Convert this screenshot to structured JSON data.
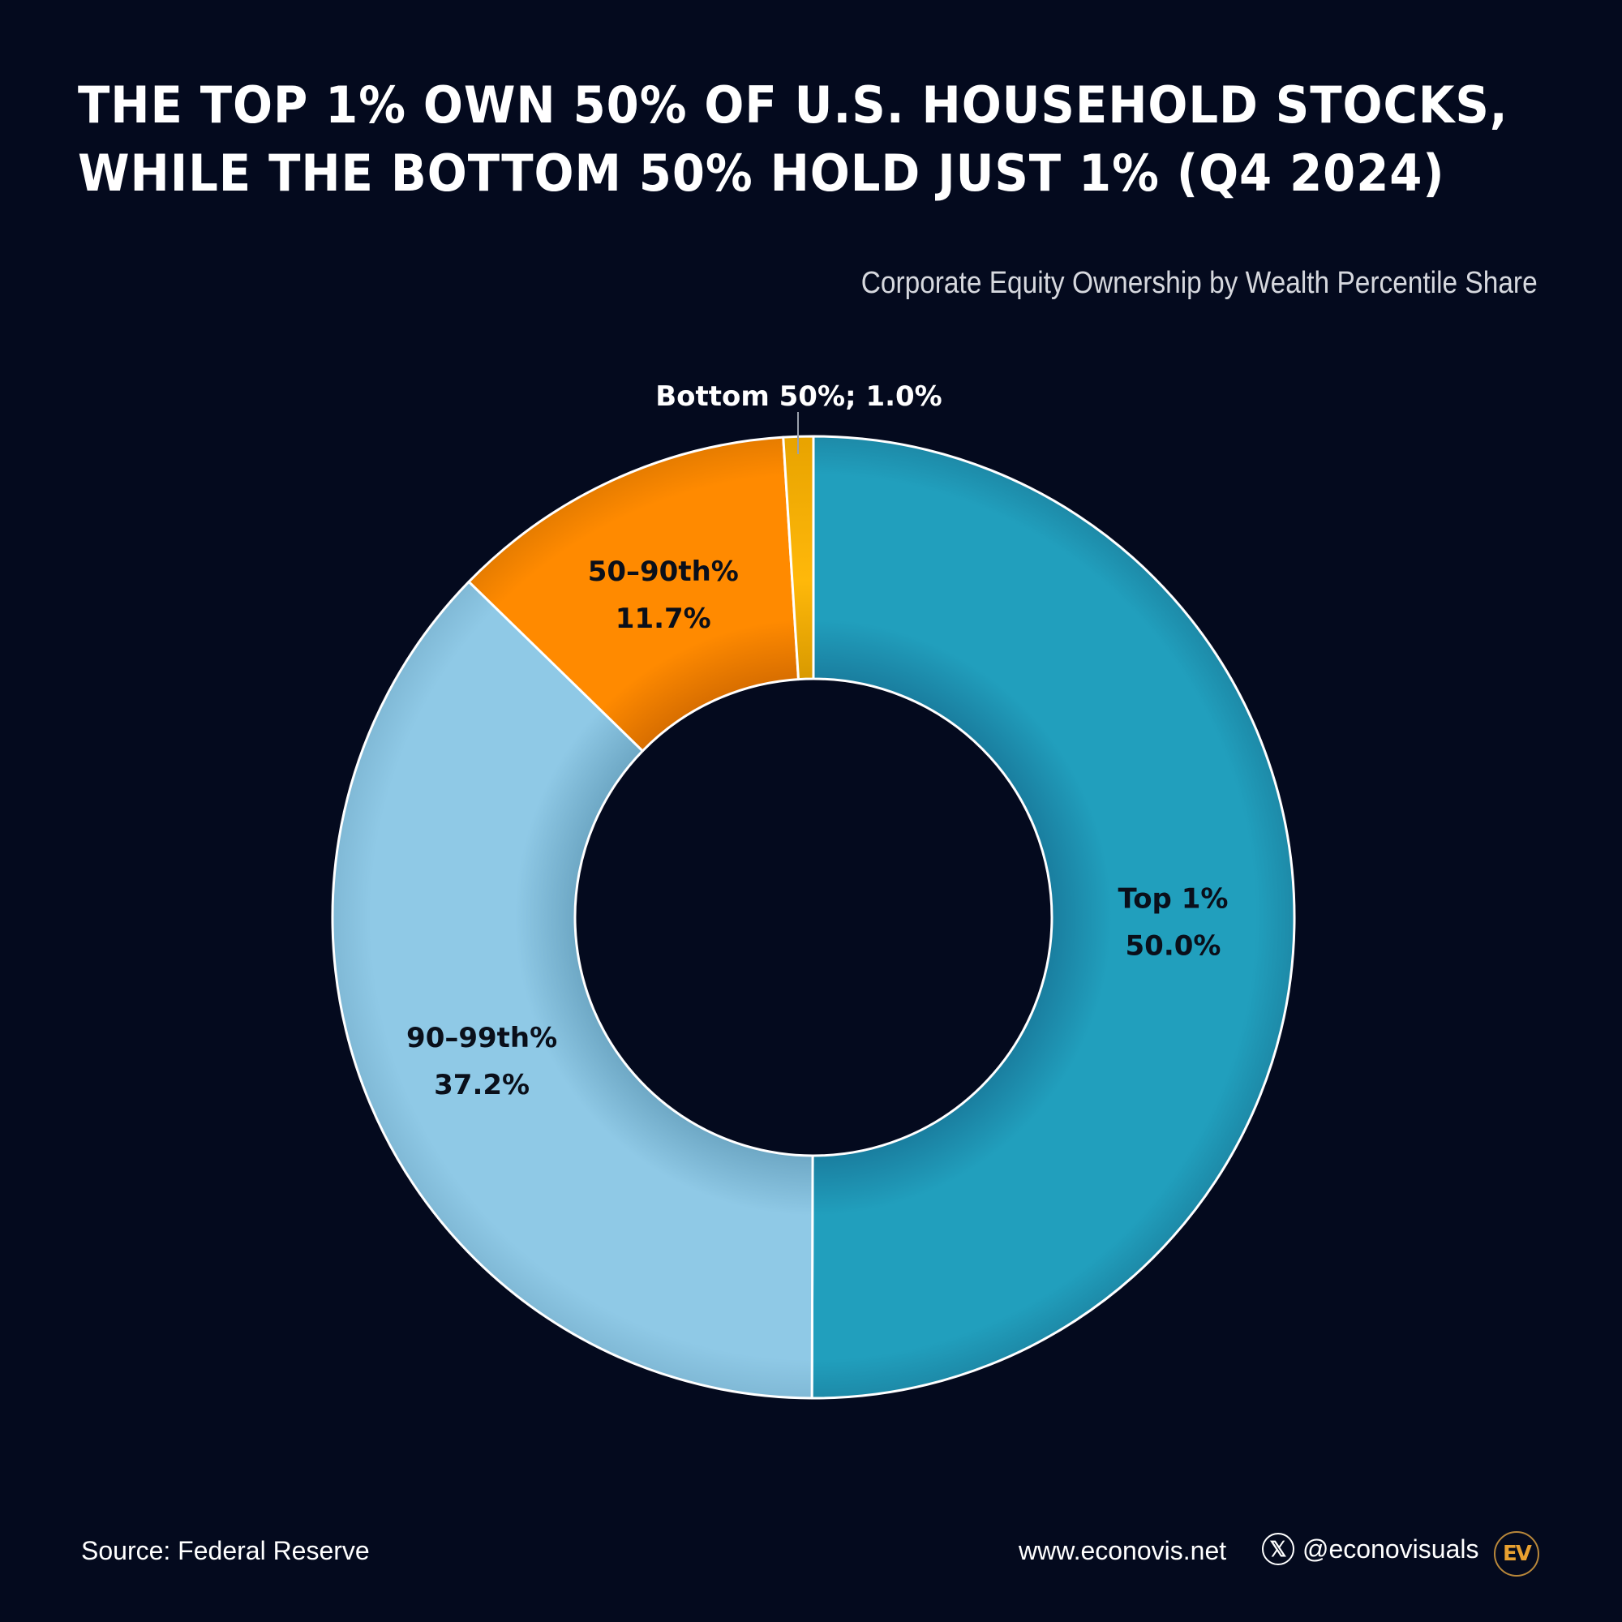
{
  "header": {
    "title_line1": "THE TOP 1% OWN 50% OF U.S. HOUSEHOLD STOCKS,",
    "title_line2": "WHILE THE BOTTOM 50% HOLD JUST 1% (Q4 2024)",
    "subtitle": "Corporate Equity Ownership by Wealth Percentile Share"
  },
  "chart_data": {
    "type": "pie",
    "variant": "donut",
    "title": "THE TOP 1% OWN 50% OF U.S. HOUSEHOLD STOCKS, WHILE THE BOTTOM 50% HOLD JUST 1% (Q4 2024)",
    "subtitle": "Corporate Equity Ownership by Wealth Percentile Share",
    "categories": [
      "Top 1%",
      "90–99th%",
      "50–90th%",
      "Bottom 50%"
    ],
    "values": [
      50.0,
      37.2,
      11.7,
      1.0
    ],
    "unit": "%",
    "colors": [
      "#219fbd",
      "#8fc9e6",
      "#ff8a00",
      "#ffb80a"
    ],
    "start_angle_deg": 0,
    "direction": "clockwise",
    "legend": "none (direct labels)"
  },
  "labels": {
    "top1_name": "Top 1%",
    "top1_value": "50.0%",
    "p90_99_name": "90–99th%",
    "p90_99_value": "37.2%",
    "p50_90_name": "50–90th%",
    "p50_90_value": "11.7%",
    "bottom50_callout": "Bottom 50%; 1.0%"
  },
  "footer": {
    "source": "Source: Federal Reserve",
    "website": "www.econovis.net",
    "social_handle": "@econovisuals",
    "x_icon_glyph": "𝕏",
    "logo_text": "EV"
  },
  "colors": {
    "background": "#040a1e",
    "slice_border": "#ffffff",
    "logo_gold": "#e8a030"
  }
}
